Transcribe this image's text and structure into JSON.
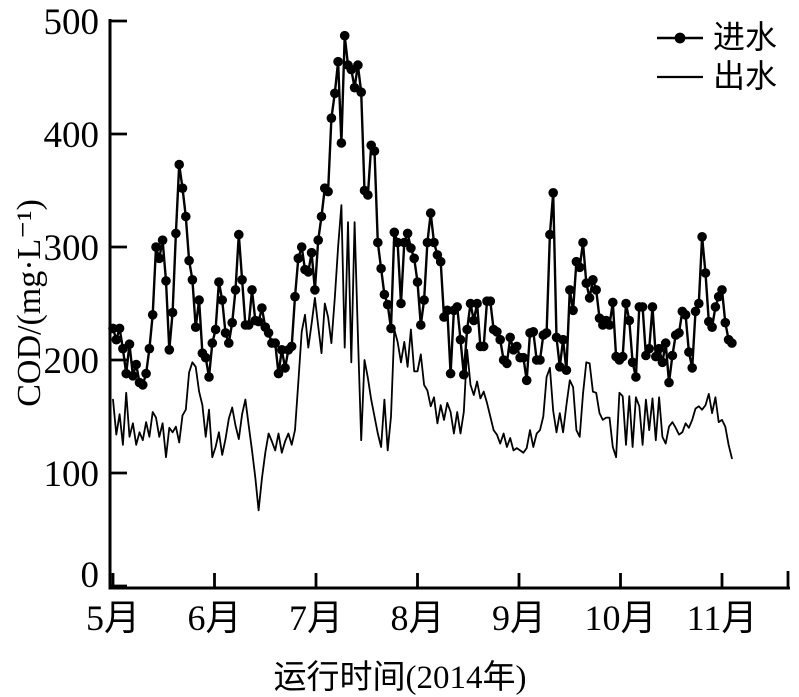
{
  "page": {
    "background": "#ffffff",
    "foreground": "#000000"
  },
  "chart_data": {
    "type": "line",
    "title": "",
    "xlabel": "运行时间(2014年)",
    "ylabel": "COD/(mg·L⁻¹)",
    "ylim": [
      0,
      500
    ],
    "y_ticks": [
      0,
      100,
      200,
      300,
      400,
      500
    ],
    "x_tick_labels": [
      "5月",
      "6月",
      "7月",
      "8月",
      "9月",
      "10月",
      "11月"
    ],
    "x_start": "2014-05-01",
    "x_step": "1 day",
    "n_points": 188,
    "grid": false,
    "legend_position": "top-right",
    "color": "#000000",
    "series": [
      {
        "name": "进水",
        "marker": "filled-circle",
        "line_width": 2.4,
        "values": [
          228,
          218,
          228,
          210,
          188,
          214,
          186,
          196,
          180,
          178,
          188,
          210,
          240,
          300,
          290,
          306,
          270,
          209,
          242,
          312,
          373,
          352,
          327,
          288,
          271,
          229,
          253,
          206,
          202,
          185,
          215,
          227,
          269,
          253,
          224,
          215,
          233,
          262,
          311,
          271,
          231,
          231,
          262,
          235,
          234,
          246,
          229,
          224,
          215,
          215,
          188,
          209,
          193,
          209,
          212,
          256,
          290,
          300,
          280,
          278,
          295,
          262,
          306,
          327,
          352,
          349,
          414,
          436,
          464,
          392,
          487,
          461,
          457,
          441,
          461,
          437,
          350,
          346,
          390,
          385,
          304,
          281,
          258,
          249,
          228,
          313,
          304,
          250,
          304,
          312,
          299,
          290,
          269,
          231,
          253,
          304,
          330,
          304,
          293,
          287,
          238,
          244,
          188,
          244,
          247,
          218,
          187,
          227,
          250,
          235,
          250,
          212,
          212,
          252,
          252,
          227,
          225,
          218,
          200,
          197,
          220,
          209,
          212,
          202,
          202,
          182,
          224,
          225,
          200,
          200,
          222,
          224,
          311,
          348,
          220,
          194,
          218,
          191,
          262,
          244,
          287,
          282,
          304,
          268,
          255,
          271,
          262,
          237,
          231,
          235,
          231,
          251,
          203,
          200,
          203,
          250,
          235,
          198,
          185,
          247,
          247,
          204,
          210,
          247,
          203,
          210,
          198,
          215,
          180,
          204,
          222,
          224,
          243,
          240,
          207,
          193,
          243,
          250,
          309,
          277,
          234,
          229,
          247,
          256,
          262,
          233,
          218,
          215
        ]
      },
      {
        "name": "出水",
        "marker": "none",
        "line_width": 1.8,
        "values": [
          165,
          134,
          152,
          125,
          171,
          132,
          144,
          125,
          136,
          129,
          145,
          132,
          154,
          149,
          132,
          144,
          114,
          140,
          136,
          141,
          127,
          151,
          156,
          189,
          198,
          194,
          172,
          160,
          132,
          156,
          114,
          123,
          136,
          116,
          130,
          148,
          158,
          142,
          130,
          152,
          165,
          142,
          120,
          96,
          67,
          95,
          118,
          135,
          128,
          120,
          135,
          118,
          128,
          135,
          125,
          138,
          180,
          225,
          240,
          211,
          232,
          255,
          230,
          206,
          250,
          238,
          215,
          255,
          300,
          337,
          211,
          322,
          198,
          322,
          222,
          129,
          200,
          184,
          165,
          150,
          135,
          123,
          165,
          120,
          150,
          227,
          216,
          198,
          216,
          194,
          227,
          190,
          190,
          205,
          178,
          173,
          159,
          167,
          144,
          160,
          147,
          162,
          154,
          135,
          154,
          135,
          154,
          209,
          178,
          169,
          181,
          166,
          172,
          162,
          150,
          138,
          134,
          126,
          135,
          123,
          131,
          120,
          122,
          120,
          118,
          122,
          138,
          123,
          135,
          138,
          150,
          185,
          193,
          155,
          136,
          153,
          136,
          160,
          182,
          176,
          138,
          132,
          170,
          198,
          197,
          172,
          171,
          153,
          147,
          149,
          149,
          123,
          114,
          171,
          168,
          125,
          168,
          123,
          167,
          159,
          125,
          165,
          138,
          166,
          129,
          167,
          132,
          126,
          141,
          145,
          140,
          134,
          136,
          144,
          140,
          147,
          157,
          159,
          156,
          160,
          170,
          153,
          167,
          145,
          147,
          141,
          125,
          113
        ]
      }
    ]
  }
}
